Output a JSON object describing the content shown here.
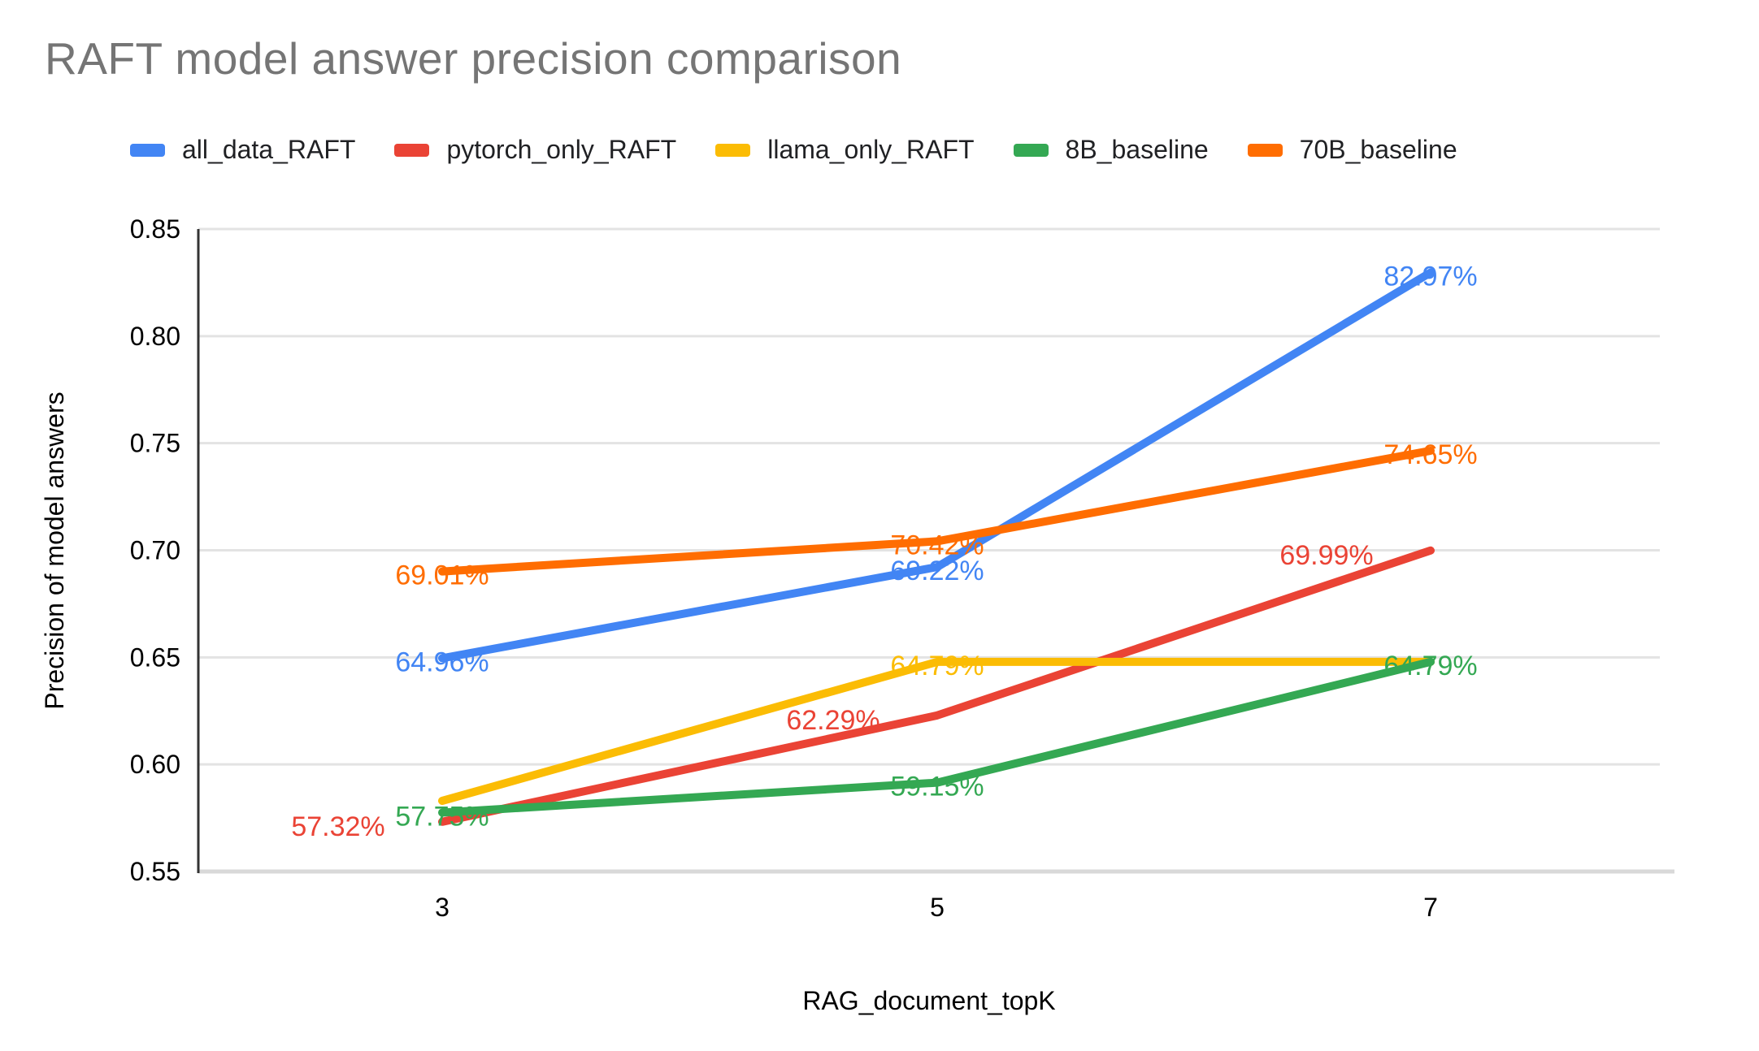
{
  "title": "RAFT model answer precision comparison",
  "legend": {
    "position": "top",
    "items": [
      {
        "label": "all_data_RAFT",
        "color": "#4285F4"
      },
      {
        "label": "pytorch_only_RAFT",
        "color": "#EA4335"
      },
      {
        "label": "llama_only_RAFT",
        "color": "#FBBC04"
      },
      {
        "label": "8B_baseline",
        "color": "#34A853"
      },
      {
        "label": "70B_baseline",
        "color": "#FF6D01"
      }
    ]
  },
  "chart_data": {
    "type": "line",
    "title": "RAFT model answer precision comparison",
    "xlabel": "RAG_document_topK",
    "ylabel": "Precision of model answers",
    "x": [
      3,
      5,
      7
    ],
    "x_tick_labels": [
      "3",
      "5",
      "7"
    ],
    "ylim": [
      0.55,
      0.85
    ],
    "y_ticks": [
      "0.85",
      "0.80",
      "0.75",
      "0.70",
      "0.65",
      "0.60",
      "0.55"
    ],
    "grid": true,
    "values_unit": "percent",
    "series": [
      {
        "name": "all_data_RAFT",
        "color": "#4285F4",
        "values": [
          64.96,
          69.22,
          82.97
        ],
        "labels": [
          "64.96%",
          "69.22%",
          "82.97%"
        ]
      },
      {
        "name": "pytorch_only_RAFT",
        "color": "#EA4335",
        "values": [
          57.32,
          62.29,
          69.99
        ],
        "labels": [
          "57.32%",
          "62.29%",
          "69.99%"
        ]
      },
      {
        "name": "llama_only_RAFT",
        "color": "#FBBC04",
        "values": [
          58.3,
          64.79,
          64.79
        ],
        "labels": [
          null,
          "64.79%",
          null
        ],
        "note": "first point label hidden in chart (value estimated from gridlines); last point label hidden behind 8B_baseline label"
      },
      {
        "name": "8B_baseline",
        "color": "#34A853",
        "values": [
          57.75,
          59.15,
          64.79
        ],
        "labels": [
          "57.75%",
          "59.15%",
          "64.79%"
        ]
      },
      {
        "name": "70B_baseline",
        "color": "#FF6D01",
        "values": [
          69.01,
          70.42,
          74.65
        ],
        "labels": [
          "69.01%",
          "70.42%",
          "74.65%"
        ]
      }
    ]
  }
}
